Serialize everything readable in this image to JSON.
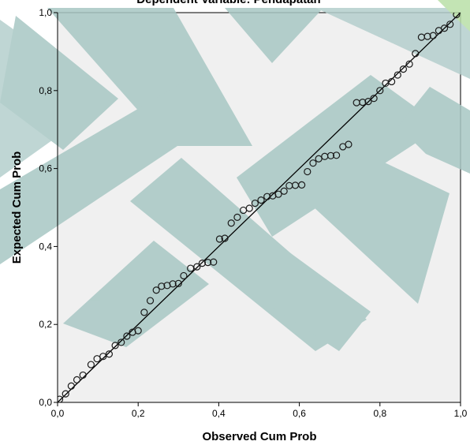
{
  "chart_data": {
    "type": "scatter",
    "title": "Dependent Variable: Pendapatan",
    "xlabel": "Observed Cum Prob",
    "ylabel": "Expected Cum Prob",
    "xlim": [
      0,
      1
    ],
    "ylim": [
      0,
      1
    ],
    "xticks": [
      "0,0",
      "0,2",
      "0,4",
      "0,6",
      "0,8",
      "1,0"
    ],
    "yticks": [
      "0,0",
      "0,2",
      "0,4",
      "0,6",
      "0,8",
      "1,0"
    ],
    "grid": false,
    "reference_line": {
      "from": [
        0,
        0
      ],
      "to": [
        1,
        1
      ]
    },
    "points": [
      [
        0.005,
        0.008
      ],
      [
        0.02,
        0.022
      ],
      [
        0.034,
        0.042
      ],
      [
        0.048,
        0.058
      ],
      [
        0.063,
        0.07
      ],
      [
        0.083,
        0.097
      ],
      [
        0.098,
        0.112
      ],
      [
        0.113,
        0.118
      ],
      [
        0.128,
        0.124
      ],
      [
        0.143,
        0.146
      ],
      [
        0.158,
        0.154
      ],
      [
        0.172,
        0.17
      ],
      [
        0.186,
        0.18
      ],
      [
        0.2,
        0.184
      ],
      [
        0.215,
        0.231
      ],
      [
        0.23,
        0.261
      ],
      [
        0.245,
        0.288
      ],
      [
        0.258,
        0.298
      ],
      [
        0.272,
        0.3
      ],
      [
        0.286,
        0.304
      ],
      [
        0.3,
        0.305
      ],
      [
        0.313,
        0.325
      ],
      [
        0.33,
        0.344
      ],
      [
        0.346,
        0.348
      ],
      [
        0.359,
        0.357
      ],
      [
        0.373,
        0.359
      ],
      [
        0.387,
        0.36
      ],
      [
        0.402,
        0.419
      ],
      [
        0.415,
        0.421
      ],
      [
        0.431,
        0.46
      ],
      [
        0.446,
        0.475
      ],
      [
        0.461,
        0.493
      ],
      [
        0.476,
        0.498
      ],
      [
        0.49,
        0.511
      ],
      [
        0.505,
        0.519
      ],
      [
        0.52,
        0.528
      ],
      [
        0.534,
        0.53
      ],
      [
        0.548,
        0.534
      ],
      [
        0.562,
        0.542
      ],
      [
        0.575,
        0.556
      ],
      [
        0.59,
        0.557
      ],
      [
        0.606,
        0.558
      ],
      [
        0.62,
        0.592
      ],
      [
        0.634,
        0.614
      ],
      [
        0.648,
        0.625
      ],
      [
        0.663,
        0.631
      ],
      [
        0.678,
        0.633
      ],
      [
        0.692,
        0.634
      ],
      [
        0.708,
        0.656
      ],
      [
        0.722,
        0.662
      ],
      [
        0.742,
        0.769
      ],
      [
        0.757,
        0.77
      ],
      [
        0.771,
        0.772
      ],
      [
        0.785,
        0.78
      ],
      [
        0.8,
        0.8
      ],
      [
        0.814,
        0.819
      ],
      [
        0.829,
        0.823
      ],
      [
        0.844,
        0.84
      ],
      [
        0.858,
        0.855
      ],
      [
        0.873,
        0.868
      ],
      [
        0.888,
        0.895
      ],
      [
        0.903,
        0.937
      ],
      [
        0.918,
        0.939
      ],
      [
        0.932,
        0.941
      ],
      [
        0.946,
        0.954
      ],
      [
        0.96,
        0.96
      ],
      [
        0.974,
        0.97
      ],
      [
        0.99,
        0.995
      ]
    ]
  }
}
